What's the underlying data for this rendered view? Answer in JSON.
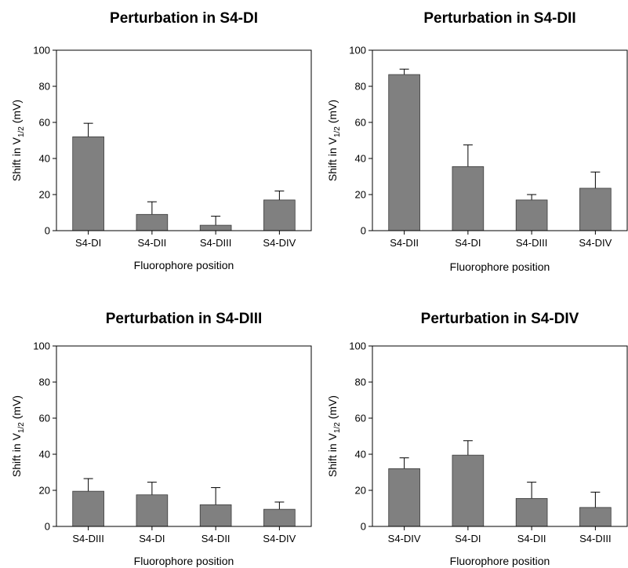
{
  "chart_data": [
    {
      "type": "bar",
      "title": "Perturbation in S4-DI",
      "xlabel": "Fluorophore position",
      "ylabel": {
        "main": "Shift in V",
        "sub": "1/2",
        "unit": " (mV)"
      },
      "categories": [
        "S4-DI",
        "S4-DII",
        "S4-DIII",
        "S4-DIV"
      ],
      "values": [
        52,
        9,
        3,
        17
      ],
      "errors": [
        7.5,
        7,
        5,
        5
      ],
      "ylim": [
        0,
        100
      ],
      "yticks": [
        0,
        20,
        40,
        60,
        80,
        100
      ],
      "grid": false,
      "bar_color": "#808080"
    },
    {
      "type": "bar",
      "title": "Perturbation in S4-DII",
      "xlabel": "Fluorophore position",
      "ylabel": {
        "main": "Shift in V",
        "sub": "1/2",
        "unit": " (mV)"
      },
      "categories": [
        "S4-DII",
        "S4-DI",
        "S4-DIII",
        "S4-DIV"
      ],
      "values": [
        86.5,
        35.5,
        17,
        23.5
      ],
      "errors": [
        3,
        12,
        3,
        9
      ],
      "ylim": [
        0,
        100
      ],
      "yticks": [
        0,
        20,
        40,
        60,
        80,
        100
      ],
      "grid": false,
      "bar_color": "#808080"
    },
    {
      "type": "bar",
      "title": "Perturbation in S4-DIII",
      "xlabel": "Fluorophore position",
      "ylabel": {
        "main": "Shift in V",
        "sub": "1/2",
        "unit": " (mV)"
      },
      "categories": [
        "S4-DIII",
        "S4-DI",
        "S4-DII",
        "S4-DIV"
      ],
      "values": [
        19.5,
        17.5,
        12,
        9.5
      ],
      "errors": [
        7,
        7,
        9.5,
        4
      ],
      "ylim": [
        0,
        100
      ],
      "yticks": [
        0,
        20,
        40,
        60,
        80,
        100
      ],
      "grid": false,
      "bar_color": "#808080"
    },
    {
      "type": "bar",
      "title": "Perturbation in S4-DIV",
      "xlabel": "Fluorophore position",
      "ylabel": {
        "main": "Shift in V",
        "sub": "1/2",
        "unit": " (mV)"
      },
      "categories": [
        "S4-DIV",
        "S4-DI",
        "S4-DII",
        "S4-DIII"
      ],
      "values": [
        32,
        39.5,
        15.5,
        10.5
      ],
      "errors": [
        6,
        8,
        9,
        8.5
      ],
      "ylim": [
        0,
        100
      ],
      "yticks": [
        0,
        20,
        40,
        60,
        80,
        100
      ],
      "grid": false,
      "bar_color": "#808080"
    }
  ]
}
